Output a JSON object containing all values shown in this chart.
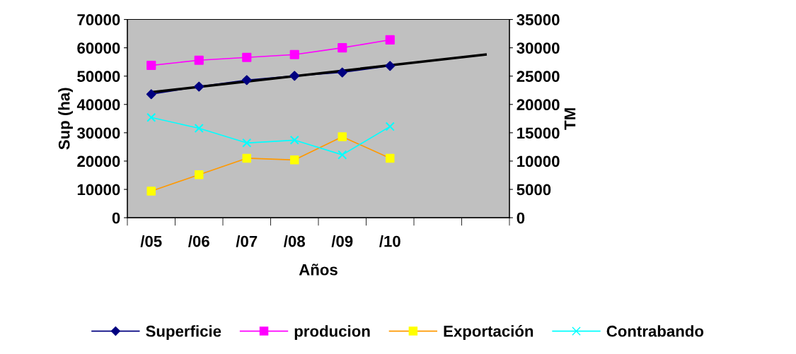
{
  "chart_data": {
    "type": "line",
    "xlabel": "Años",
    "ylabel": "Sup (ha)",
    "y2label": "TM",
    "categories": [
      "/05",
      "/06",
      "/07",
      "/08",
      "/09",
      "/10",
      null,
      null
    ],
    "ylim": [
      0,
      70000
    ],
    "yticks": [
      0,
      10000,
      20000,
      30000,
      40000,
      50000,
      60000,
      70000
    ],
    "y2lim": [
      0,
      35000
    ],
    "y2ticks": [
      0,
      5000,
      10000,
      15000,
      20000,
      25000,
      30000,
      35000
    ],
    "grid": false,
    "legend": "bottom",
    "series": [
      {
        "name": "Superficie",
        "color": "#000080",
        "marker": "diamond",
        "values": [
          43600,
          46300,
          48600,
          50100,
          51300,
          53600,
          null,
          null
        ]
      },
      {
        "name": "producion",
        "color": "#ff00ff",
        "marker": "square",
        "axis": "y2",
        "values": [
          26900,
          27800,
          28300,
          28800,
          30000,
          31400,
          null,
          null
        ]
      },
      {
        "name": "Exportación",
        "color": "#ff9900",
        "colors": [
          "#ffff00",
          "#ffff00",
          "#ffff00",
          "#ffff00",
          "#ffff00",
          "#ffff00",
          "#ffff00",
          "#ffff00"
        ],
        "marker": "square",
        "axis": "y2",
        "values": [
          4700,
          7600,
          10500,
          10200,
          14300,
          10500,
          null,
          null
        ]
      },
      {
        "name": "Contrabando",
        "color": "#00ffff",
        "marker": "cross",
        "axis": "y2",
        "values": [
          17700,
          15800,
          13200,
          13700,
          11100,
          16100,
          null,
          null
        ]
      },
      {
        "color": "#000000",
        "marker": "none",
        "values": [
          44300,
          null,
          null,
          null,
          null,
          null,
          null,
          57600
        ]
      }
    ]
  }
}
